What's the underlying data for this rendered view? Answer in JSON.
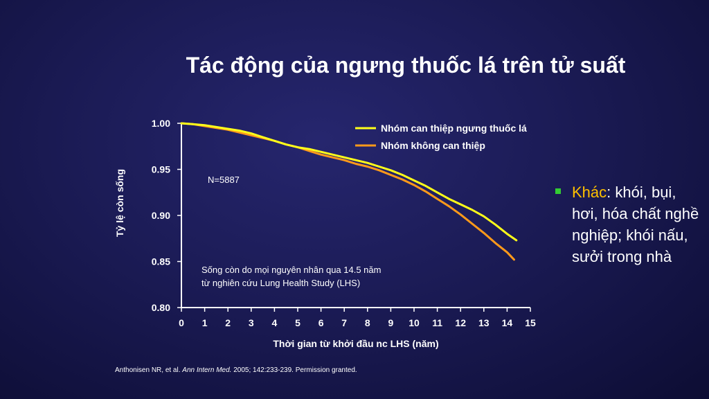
{
  "slide": {
    "title": "Tác động của ngưng thuốc lá trên tử suất",
    "bullet": {
      "key": "Khác",
      "text": ": khói, bụi, hơi, hóa chất nghề nghiệp; khói nấu, sưởi trong nhà"
    },
    "citation": {
      "before": "Anthonisen NR, et al. ",
      "journal": "Ann Intern Med.",
      "after": " 2005; 142:233-239. Permission granted."
    }
  },
  "chart_data": {
    "type": "line",
    "title": "",
    "xlabel": "Thời gian từ khởi đầu nc LHS (năm)",
    "ylabel": "Tỷ lệ còn sống",
    "xlim": [
      0,
      15
    ],
    "ylim": [
      0.8,
      1.0
    ],
    "xticks": [
      "0",
      "1",
      "2",
      "3",
      "4",
      "5",
      "6",
      "7",
      "8",
      "9",
      "10",
      "11",
      "12",
      "13",
      "14",
      "15"
    ],
    "yticks": [
      "0.80",
      "0.85",
      "0.90",
      "0.95",
      "1.00"
    ],
    "grid": false,
    "legend_position": "top-right",
    "annotations": {
      "n_label": "N=5887",
      "caption_line1": "Sống còn do mọi nguyên nhân qua 14.5 năm",
      "caption_line2": "từ nghiên cứu Lung Health Study (LHS)"
    },
    "series": [
      {
        "name": "Nhóm can thiệp ngưng thuốc lá",
        "color": "#ffff1a",
        "x": [
          0,
          0.5,
          1,
          1.5,
          2,
          2.5,
          3,
          3.5,
          4,
          4.5,
          5,
          5.5,
          6,
          6.5,
          7,
          7.5,
          8,
          8.5,
          9,
          9.5,
          10,
          10.5,
          11,
          11.5,
          12,
          12.5,
          13,
          13.5,
          14,
          14.4
        ],
        "y": [
          1.0,
          0.999,
          0.998,
          0.996,
          0.994,
          0.992,
          0.989,
          0.985,
          0.981,
          0.977,
          0.974,
          0.972,
          0.969,
          0.966,
          0.963,
          0.96,
          0.957,
          0.953,
          0.949,
          0.944,
          0.938,
          0.932,
          0.925,
          0.918,
          0.912,
          0.906,
          0.899,
          0.89,
          0.88,
          0.873
        ]
      },
      {
        "name": "Nhóm không can thiệp",
        "color": "#ff9a1a",
        "x": [
          0,
          0.5,
          1,
          1.5,
          2,
          2.5,
          3,
          3.5,
          4,
          4.5,
          5,
          5.5,
          6,
          6.5,
          7,
          7.5,
          8,
          8.5,
          9,
          9.5,
          10,
          10.5,
          11,
          11.5,
          12,
          12.5,
          13,
          13.5,
          14,
          14.3
        ],
        "y": [
          1.0,
          0.999,
          0.997,
          0.995,
          0.993,
          0.99,
          0.987,
          0.984,
          0.981,
          0.977,
          0.974,
          0.97,
          0.966,
          0.963,
          0.96,
          0.956,
          0.953,
          0.949,
          0.944,
          0.939,
          0.933,
          0.926,
          0.918,
          0.91,
          0.901,
          0.891,
          0.881,
          0.87,
          0.86,
          0.852
        ]
      }
    ]
  }
}
